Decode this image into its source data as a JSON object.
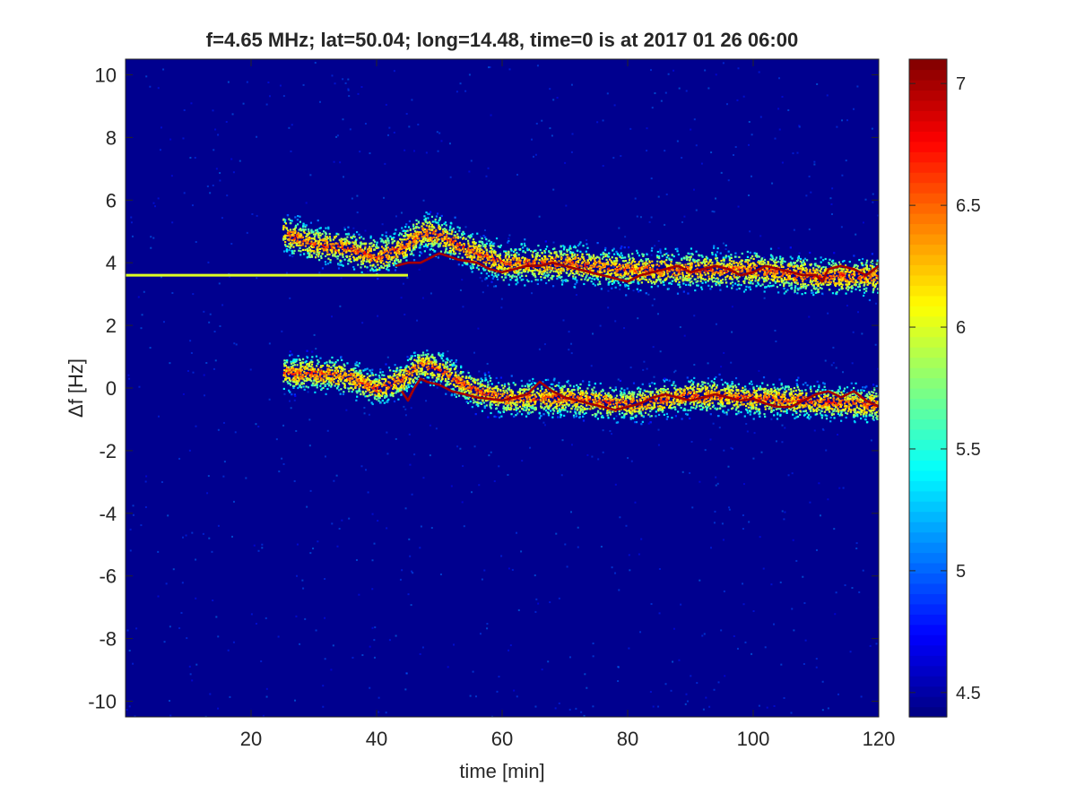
{
  "chart_data": {
    "type": "heatmap",
    "title": "f=4.65 MHz;  lat=50.04; long=14.48, time=0 is at 2017 01 26 06:00",
    "xlabel": "time [min]",
    "ylabel": "Δf [Hz]",
    "xlim": [
      0,
      120
    ],
    "ylim": [
      -10.5,
      10.5
    ],
    "xticks": [
      20,
      40,
      60,
      80,
      100,
      120
    ],
    "yticks": [
      10,
      8,
      6,
      4,
      2,
      0,
      -2,
      -4,
      -6,
      -8,
      -10
    ],
    "colorbar": {
      "colormap": "jet",
      "limits": [
        4.4,
        7.1
      ],
      "ticks": [
        4.5,
        5,
        5.5,
        6,
        6.5,
        7
      ]
    },
    "background_level": 4.5,
    "carrier_line": {
      "y": 3.6,
      "x_range": [
        0,
        45
      ],
      "level": 6.0
    },
    "traces": [
      {
        "name": "",
        "level": 7.0,
        "points": [
          [
            43,
            3.9
          ],
          [
            45,
            4.0
          ],
          [
            47,
            4.0
          ],
          [
            50,
            4.3
          ],
          [
            53,
            4.1
          ],
          [
            56,
            4.0
          ],
          [
            58,
            3.8
          ],
          [
            60,
            3.7
          ],
          [
            62,
            3.8
          ],
          [
            64,
            3.9
          ],
          [
            66,
            3.9
          ],
          [
            68,
            4.0
          ],
          [
            70,
            3.9
          ],
          [
            72,
            3.8
          ],
          [
            74,
            3.7
          ],
          [
            76,
            3.6
          ],
          [
            78,
            3.5
          ],
          [
            80,
            3.4
          ],
          [
            82,
            3.6
          ],
          [
            84,
            3.7
          ],
          [
            86,
            3.8
          ],
          [
            88,
            3.9
          ],
          [
            90,
            3.7
          ],
          [
            92,
            3.8
          ],
          [
            94,
            3.9
          ],
          [
            96,
            3.8
          ],
          [
            98,
            3.6
          ],
          [
            100,
            3.7
          ],
          [
            102,
            3.9
          ],
          [
            104,
            3.8
          ],
          [
            106,
            3.7
          ],
          [
            108,
            3.6
          ],
          [
            110,
            3.6
          ],
          [
            111,
            3.4
          ],
          [
            112,
            3.8
          ],
          [
            114,
            3.9
          ],
          [
            116,
            3.8
          ],
          [
            118,
            3.6
          ],
          [
            120,
            3.9
          ]
        ]
      },
      {
        "name": "",
        "level": 7.0,
        "points": [
          [
            44,
            -0.1
          ],
          [
            45,
            -0.4
          ],
          [
            46,
            0.0
          ],
          [
            47,
            0.3
          ],
          [
            48,
            0.2
          ],
          [
            50,
            0.1
          ],
          [
            52,
            -0.1
          ],
          [
            54,
            -0.2
          ],
          [
            56,
            -0.3
          ],
          [
            58,
            -0.35
          ],
          [
            60,
            -0.4
          ],
          [
            62,
            -0.3
          ],
          [
            64,
            -0.2
          ],
          [
            66,
            0.2
          ],
          [
            68,
            -0.1
          ],
          [
            70,
            -0.3
          ],
          [
            72,
            -0.4
          ],
          [
            74,
            -0.5
          ],
          [
            76,
            -0.6
          ],
          [
            78,
            -0.7
          ],
          [
            80,
            -0.6
          ],
          [
            82,
            -0.5
          ],
          [
            84,
            -0.3
          ],
          [
            86,
            -0.2
          ],
          [
            88,
            -0.3
          ],
          [
            90,
            -0.4
          ],
          [
            92,
            -0.3
          ],
          [
            94,
            -0.2
          ],
          [
            96,
            -0.3
          ],
          [
            98,
            -0.4
          ],
          [
            100,
            -0.35
          ],
          [
            102,
            -0.5
          ],
          [
            104,
            -0.6
          ],
          [
            106,
            -0.6
          ],
          [
            108,
            -0.4
          ],
          [
            110,
            -0.2
          ],
          [
            112,
            -0.1
          ],
          [
            114,
            -0.3
          ],
          [
            116,
            -0.1
          ],
          [
            118,
            -0.4
          ],
          [
            120,
            -0.6
          ]
        ]
      }
    ],
    "scatter_bands": [
      {
        "center": [
          [
            25,
            5.0
          ],
          [
            30,
            4.6
          ],
          [
            35,
            4.5
          ],
          [
            40,
            4.2
          ],
          [
            44,
            4.5
          ],
          [
            47,
            5.0
          ],
          [
            50,
            4.9
          ],
          [
            55,
            4.4
          ],
          [
            60,
            4.0
          ],
          [
            70,
            4.0
          ],
          [
            80,
            3.8
          ],
          [
            90,
            3.8
          ],
          [
            100,
            3.8
          ],
          [
            110,
            3.6
          ],
          [
            120,
            3.6
          ]
        ],
        "spread": 0.55
      },
      {
        "center": [
          [
            25,
            0.5
          ],
          [
            30,
            0.5
          ],
          [
            35,
            0.4
          ],
          [
            40,
            0.0
          ],
          [
            44,
            0.3
          ],
          [
            47,
            0.8
          ],
          [
            50,
            0.6
          ],
          [
            55,
            0.0
          ],
          [
            60,
            -0.3
          ],
          [
            70,
            -0.3
          ],
          [
            80,
            -0.5
          ],
          [
            90,
            -0.2
          ],
          [
            100,
            -0.3
          ],
          [
            110,
            -0.4
          ],
          [
            120,
            -0.5
          ]
        ],
        "spread": 0.5
      }
    ]
  }
}
